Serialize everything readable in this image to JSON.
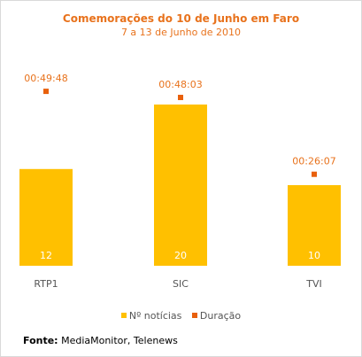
{
  "chart_data": {
    "type": "bar",
    "title": "Comemorações do 10 de Junho em Faro",
    "subtitle": "7 a 13 de Junho de 2010",
    "categories": [
      "RTP1",
      "SIC",
      "TVI"
    ],
    "series": [
      {
        "name": "Nº notícias",
        "type": "bar",
        "color": "#ffc000",
        "values": [
          12,
          20,
          10
        ]
      },
      {
        "name": "Duração",
        "type": "point",
        "color": "#e8600c",
        "values": [
          "00:49:48",
          "00:48:03",
          "00:26:07"
        ],
        "seconds": [
          2988,
          2883,
          1567
        ]
      }
    ],
    "legend_position": "bottom",
    "grid": false
  },
  "source": {
    "label": "Fonte:",
    "text": "MediaMonitor, Telenews"
  }
}
